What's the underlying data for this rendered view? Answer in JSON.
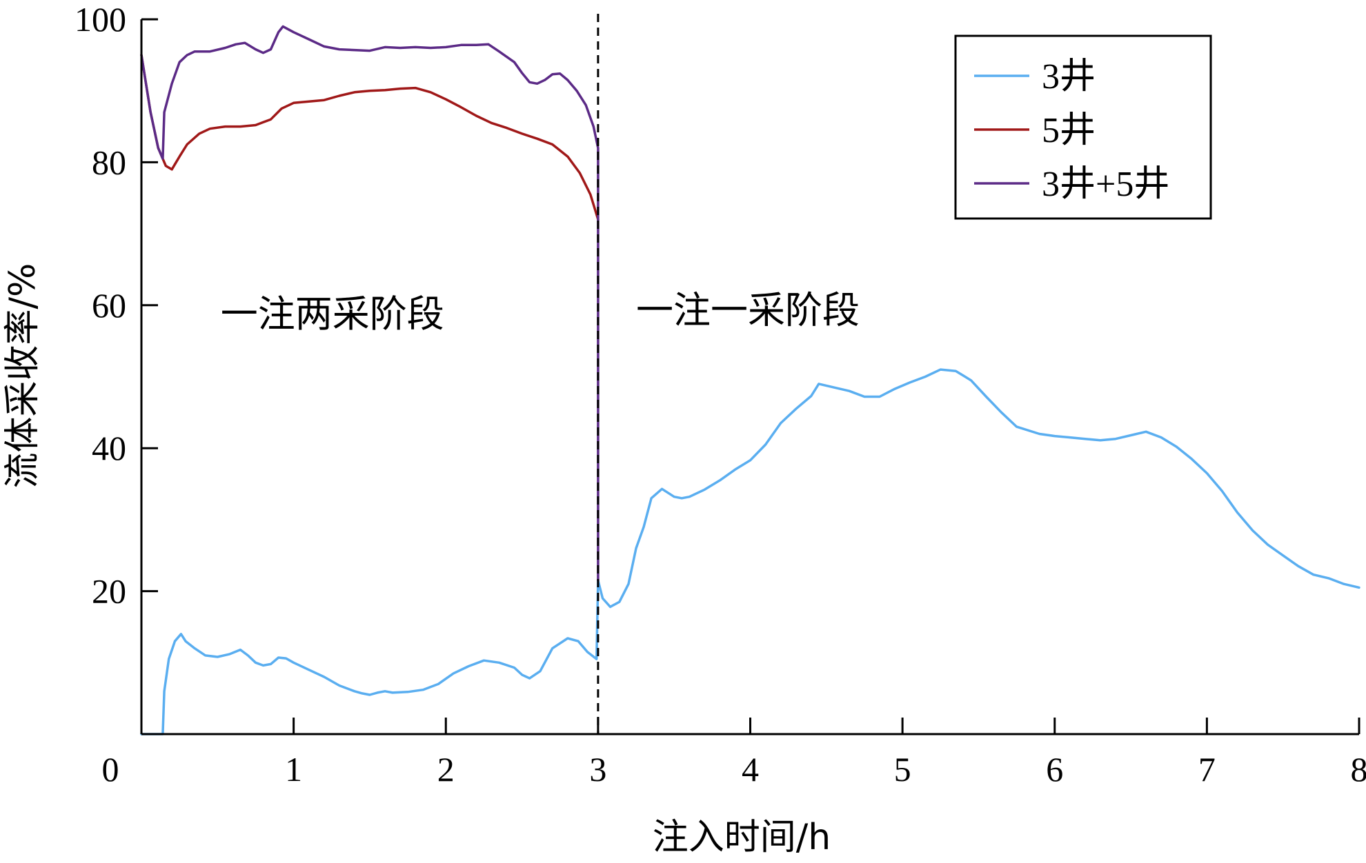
{
  "chart_data": {
    "type": "line",
    "xlabel": "注入时间/h",
    "ylabel": "流体采收率/%",
    "xlim": [
      0,
      8
    ],
    "ylim": [
      0,
      100
    ],
    "xticks": [
      0,
      1,
      2,
      3,
      4,
      5,
      6,
      7,
      8
    ],
    "yticks": [
      20,
      40,
      60,
      80,
      100
    ],
    "grid": false,
    "legend_position": "top-right",
    "colors": {
      "3井": "#5aaef0",
      "5井": "#a01818",
      "3井+5井": "#5b2a86"
    },
    "annotations": [
      {
        "text": "一注两采阶段",
        "x": 0.52,
        "y": 57
      },
      {
        "text": "一注一采阶段",
        "x": 3.25,
        "y": 57.5
      }
    ],
    "divider": {
      "x": 3.0,
      "style": "dashed"
    },
    "series": [
      {
        "name": "3井",
        "color": "#5aaef0",
        "points": [
          [
            0,
            0
          ],
          [
            0.14,
            0
          ],
          [
            0.15,
            6
          ],
          [
            0.18,
            10.5
          ],
          [
            0.22,
            13
          ],
          [
            0.26,
            14
          ],
          [
            0.29,
            13
          ],
          [
            0.35,
            12
          ],
          [
            0.42,
            11
          ],
          [
            0.5,
            10.8
          ],
          [
            0.58,
            11.2
          ],
          [
            0.65,
            11.8
          ],
          [
            0.7,
            11
          ],
          [
            0.75,
            10
          ],
          [
            0.8,
            9.6
          ],
          [
            0.85,
            9.8
          ],
          [
            0.9,
            10.7
          ],
          [
            0.95,
            10.6
          ],
          [
            1.0,
            10
          ],
          [
            1.1,
            9
          ],
          [
            1.2,
            8
          ],
          [
            1.3,
            6.8
          ],
          [
            1.4,
            6
          ],
          [
            1.45,
            5.7
          ],
          [
            1.5,
            5.5
          ],
          [
            1.55,
            5.8
          ],
          [
            1.6,
            6
          ],
          [
            1.65,
            5.8
          ],
          [
            1.75,
            5.9
          ],
          [
            1.85,
            6.2
          ],
          [
            1.95,
            7
          ],
          [
            2.05,
            8.5
          ],
          [
            2.15,
            9.5
          ],
          [
            2.25,
            10.3
          ],
          [
            2.35,
            10
          ],
          [
            2.45,
            9.3
          ],
          [
            2.5,
            8.3
          ],
          [
            2.55,
            7.8
          ],
          [
            2.62,
            8.8
          ],
          [
            2.7,
            12
          ],
          [
            2.8,
            13.4
          ],
          [
            2.87,
            13
          ],
          [
            2.93,
            11.5
          ],
          [
            2.99,
            10.5
          ],
          [
            3.0,
            21.5
          ],
          [
            3.03,
            19
          ],
          [
            3.08,
            17.8
          ],
          [
            3.14,
            18.5
          ],
          [
            3.2,
            21
          ],
          [
            3.25,
            26
          ],
          [
            3.3,
            29
          ],
          [
            3.35,
            33
          ],
          [
            3.42,
            34.3
          ],
          [
            3.5,
            33.2
          ],
          [
            3.55,
            33
          ],
          [
            3.6,
            33.2
          ],
          [
            3.7,
            34.2
          ],
          [
            3.8,
            35.5
          ],
          [
            3.9,
            37
          ],
          [
            4.0,
            38.3
          ],
          [
            4.1,
            40.5
          ],
          [
            4.2,
            43.5
          ],
          [
            4.3,
            45.5
          ],
          [
            4.4,
            47.3
          ],
          [
            4.45,
            49
          ],
          [
            4.55,
            48.5
          ],
          [
            4.65,
            48
          ],
          [
            4.75,
            47.2
          ],
          [
            4.85,
            47.2
          ],
          [
            4.95,
            48.3
          ],
          [
            5.05,
            49.2
          ],
          [
            5.15,
            50
          ],
          [
            5.25,
            51
          ],
          [
            5.35,
            50.8
          ],
          [
            5.45,
            49.5
          ],
          [
            5.55,
            47.2
          ],
          [
            5.65,
            45
          ],
          [
            5.75,
            43
          ],
          [
            5.9,
            42
          ],
          [
            6.0,
            41.7
          ],
          [
            6.1,
            41.5
          ],
          [
            6.2,
            41.3
          ],
          [
            6.3,
            41.1
          ],
          [
            6.4,
            41.3
          ],
          [
            6.5,
            41.8
          ],
          [
            6.6,
            42.3
          ],
          [
            6.7,
            41.5
          ],
          [
            6.8,
            40.2
          ],
          [
            6.9,
            38.5
          ],
          [
            7.0,
            36.5
          ],
          [
            7.1,
            34
          ],
          [
            7.2,
            31
          ],
          [
            7.3,
            28.5
          ],
          [
            7.4,
            26.5
          ],
          [
            7.5,
            25
          ],
          [
            7.6,
            23.5
          ],
          [
            7.7,
            22.3
          ],
          [
            7.8,
            21.8
          ],
          [
            7.9,
            21
          ],
          [
            8.0,
            20.5
          ]
        ]
      },
      {
        "name": "5井",
        "color": "#a01818",
        "points": [
          [
            0,
            95
          ],
          [
            0.06,
            87
          ],
          [
            0.11,
            82
          ],
          [
            0.16,
            79.5
          ],
          [
            0.2,
            79
          ],
          [
            0.25,
            80.8
          ],
          [
            0.3,
            82.5
          ],
          [
            0.38,
            84
          ],
          [
            0.45,
            84.7
          ],
          [
            0.55,
            85
          ],
          [
            0.65,
            85
          ],
          [
            0.75,
            85.2
          ],
          [
            0.85,
            86
          ],
          [
            0.92,
            87.5
          ],
          [
            1.0,
            88.3
          ],
          [
            1.1,
            88.5
          ],
          [
            1.2,
            88.7
          ],
          [
            1.3,
            89.3
          ],
          [
            1.4,
            89.8
          ],
          [
            1.5,
            90
          ],
          [
            1.6,
            90.1
          ],
          [
            1.7,
            90.3
          ],
          [
            1.8,
            90.4
          ],
          [
            1.9,
            89.8
          ],
          [
            2.0,
            88.8
          ],
          [
            2.1,
            87.7
          ],
          [
            2.2,
            86.5
          ],
          [
            2.3,
            85.5
          ],
          [
            2.4,
            84.8
          ],
          [
            2.5,
            84
          ],
          [
            2.6,
            83.3
          ],
          [
            2.7,
            82.5
          ],
          [
            2.8,
            80.8
          ],
          [
            2.88,
            78.5
          ],
          [
            2.95,
            75.5
          ],
          [
            3.0,
            72
          ]
        ]
      },
      {
        "name": "3井+5井",
        "color": "#5b2a86",
        "points": [
          [
            0,
            95
          ],
          [
            0.06,
            87
          ],
          [
            0.11,
            82
          ],
          [
            0.14,
            80.5
          ],
          [
            0.15,
            87
          ],
          [
            0.2,
            91
          ],
          [
            0.25,
            94
          ],
          [
            0.3,
            95
          ],
          [
            0.35,
            95.5
          ],
          [
            0.45,
            95.5
          ],
          [
            0.55,
            96
          ],
          [
            0.62,
            96.5
          ],
          [
            0.68,
            96.7
          ],
          [
            0.75,
            95.8
          ],
          [
            0.8,
            95.3
          ],
          [
            0.85,
            95.8
          ],
          [
            0.9,
            98.2
          ],
          [
            0.93,
            99
          ],
          [
            1.0,
            98.2
          ],
          [
            1.1,
            97.2
          ],
          [
            1.2,
            96.2
          ],
          [
            1.3,
            95.8
          ],
          [
            1.4,
            95.7
          ],
          [
            1.5,
            95.6
          ],
          [
            1.6,
            96.1
          ],
          [
            1.7,
            96
          ],
          [
            1.8,
            96.1
          ],
          [
            1.9,
            96
          ],
          [
            2.0,
            96.1
          ],
          [
            2.1,
            96.4
          ],
          [
            2.2,
            96.4
          ],
          [
            2.28,
            96.5
          ],
          [
            2.35,
            95.5
          ],
          [
            2.45,
            94
          ],
          [
            2.5,
            92.5
          ],
          [
            2.55,
            91.2
          ],
          [
            2.6,
            91
          ],
          [
            2.65,
            91.5
          ],
          [
            2.7,
            92.3
          ],
          [
            2.75,
            92.4
          ],
          [
            2.8,
            91.5
          ],
          [
            2.86,
            90
          ],
          [
            2.92,
            88
          ],
          [
            2.97,
            85
          ],
          [
            3.0,
            82
          ],
          [
            3.0,
            21.5
          ]
        ]
      }
    ]
  }
}
